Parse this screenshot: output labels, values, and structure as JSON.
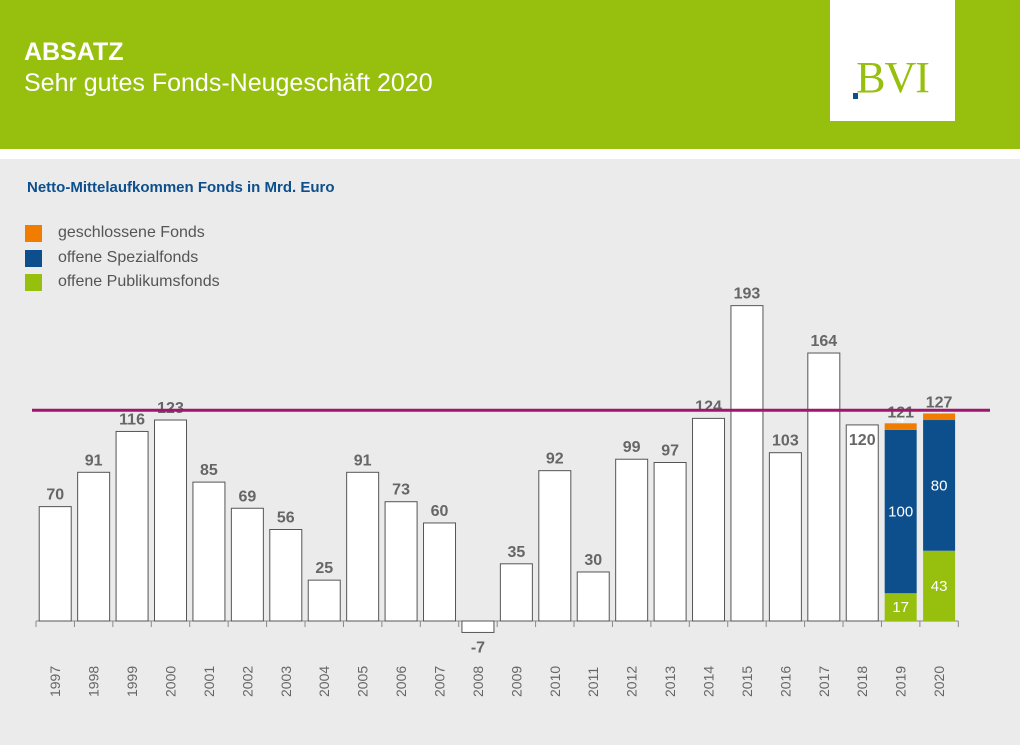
{
  "header": {
    "title": "ABSATZ",
    "subtitle": "Sehr gutes Fonds-Neugeschäft 2020",
    "logo_text": "BVI"
  },
  "colors": {
    "brand_green": "#97bf0d",
    "brand_blue": "#0c4f8c",
    "orange": "#f07d00",
    "reference_line": "#a0166e"
  },
  "chart_data": {
    "type": "bar",
    "title": "Netto-Mittelaufkommen Fonds in Mrd. Euro",
    "legend": [
      {
        "name": "geschlossene Fonds",
        "color": "#f07d00"
      },
      {
        "name": "offene Spezialfonds",
        "color": "#0c4f8c"
      },
      {
        "name": "offene Publikumsfonds",
        "color": "#97bf0d"
      }
    ],
    "categories": [
      "1997",
      "1998",
      "1999",
      "2000",
      "2001",
      "2002",
      "2003",
      "2004",
      "2005",
      "2006",
      "2007",
      "2008",
      "2009",
      "2010",
      "2011",
      "2012",
      "2013",
      "2014",
      "2015",
      "2016",
      "2017",
      "2018",
      "2019",
      "2020"
    ],
    "totals": [
      70,
      91,
      116,
      123,
      85,
      69,
      56,
      25,
      91,
      73,
      60,
      -7,
      35,
      92,
      30,
      99,
      97,
      124,
      193,
      103,
      164,
      120,
      121,
      127
    ],
    "total_labels": [
      "70",
      "91",
      "116",
      "123",
      "85",
      "69",
      "56",
      "25",
      "91",
      "73",
      "60",
      "-7",
      "35",
      "92",
      "30",
      "99",
      "97",
      "124",
      "193",
      "103",
      "164",
      "120",
      "121",
      "127"
    ],
    "stacked": [
      {
        "category": "2019",
        "offene Publikumsfonds": 17,
        "offene Spezialfonds": 100,
        "geschlossene Fonds": 4
      },
      {
        "category": "2020",
        "offene Publikumsfonds": 43,
        "offene Spezialfonds": 80,
        "geschlossene Fonds": 4
      }
    ],
    "reference_line": 129,
    "ylim": [
      -10,
      200
    ]
  }
}
